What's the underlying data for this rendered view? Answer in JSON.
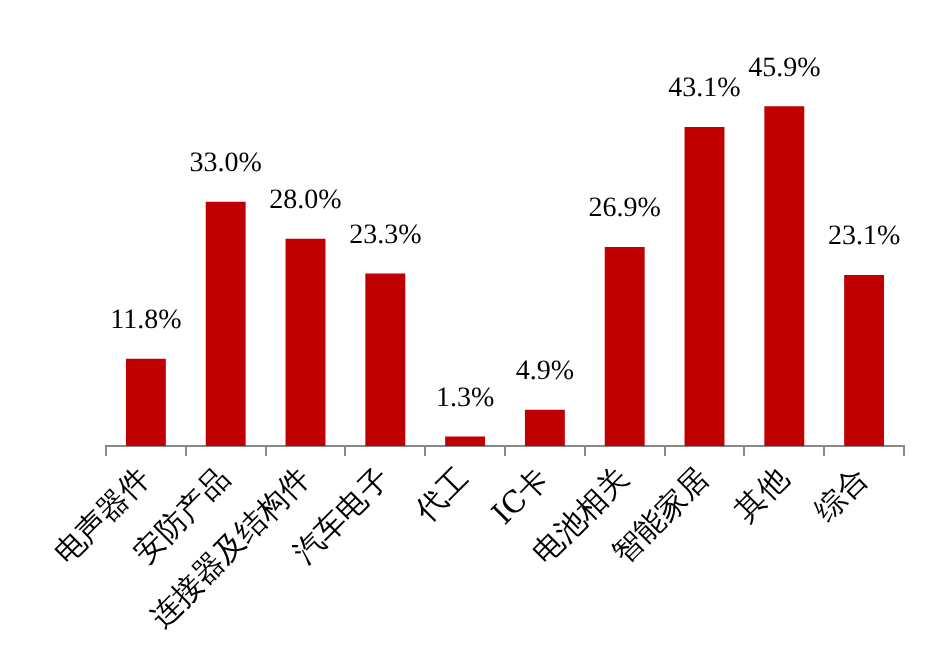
{
  "chart_data": {
    "type": "bar",
    "categories": [
      "电声器件",
      "安防产品",
      "连接器及结构件",
      "汽车电子",
      "代工",
      "IC卡",
      "电池相关",
      "智能家居",
      "其他",
      "综合"
    ],
    "values": [
      11.8,
      33.0,
      28.0,
      23.3,
      1.3,
      4.9,
      26.9,
      43.1,
      45.9,
      23.1
    ],
    "value_labels": [
      "11.8%",
      "33.0%",
      "28.0%",
      "23.3%",
      "1.3%",
      "4.9%",
      "26.9%",
      "43.1%",
      "45.9%",
      "23.1%"
    ],
    "color": "#c00000",
    "grid": false,
    "legend": false,
    "tick_labels": "x"
  }
}
